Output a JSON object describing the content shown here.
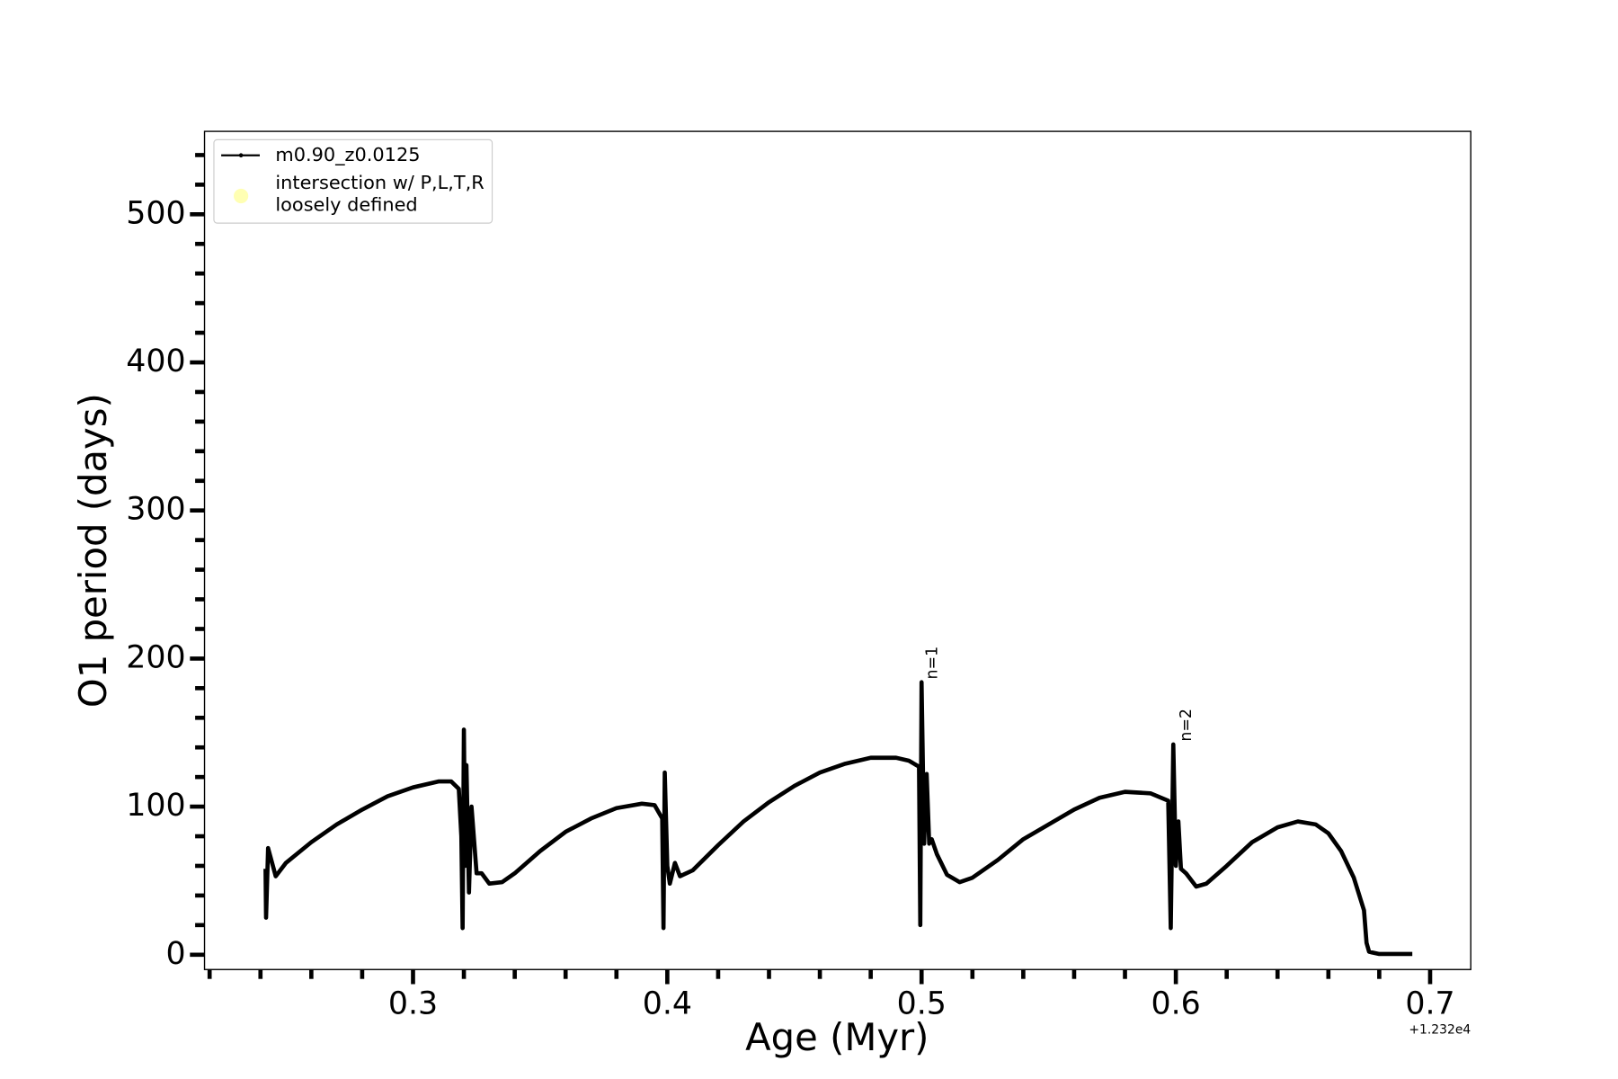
{
  "chart_data": {
    "type": "line",
    "xlabel": "Age (Myr)",
    "ylabel": "O1 period (days)",
    "x_offset_label": "+1.232e4",
    "x": [
      0.242,
      0.2422,
      0.243,
      0.246,
      0.25,
      0.26,
      0.27,
      0.28,
      0.29,
      0.3,
      0.31,
      0.315,
      0.318,
      0.319,
      0.3195,
      0.32,
      0.3205,
      0.321,
      0.322,
      0.323,
      0.325,
      0.327,
      0.33,
      0.335,
      0.34,
      0.35,
      0.36,
      0.37,
      0.38,
      0.39,
      0.395,
      0.398,
      0.3985,
      0.399,
      0.4,
      0.401,
      0.403,
      0.405,
      0.41,
      0.42,
      0.43,
      0.44,
      0.45,
      0.46,
      0.47,
      0.48,
      0.49,
      0.495,
      0.499,
      0.4995,
      0.5,
      0.501,
      0.502,
      0.503,
      0.504,
      0.506,
      0.51,
      0.515,
      0.52,
      0.53,
      0.54,
      0.55,
      0.56,
      0.57,
      0.58,
      0.59,
      0.597,
      0.598,
      0.599,
      0.6,
      0.601,
      0.602,
      0.604,
      0.608,
      0.612,
      0.62,
      0.63,
      0.64,
      0.648,
      0.655,
      0.66,
      0.665,
      0.67,
      0.674,
      0.675,
      0.676,
      0.68,
      0.693
    ],
    "series": [
      {
        "name": "m0.90_z0.0125",
        "color": "#000000",
        "values": [
          58,
          25,
          72,
          53,
          62,
          76,
          88,
          98,
          107,
          113,
          117,
          117,
          112,
          80,
          18,
          152,
          60,
          128,
          42,
          100,
          55,
          55,
          48,
          49,
          55,
          70,
          83,
          92,
          99,
          102,
          101,
          92,
          18,
          123,
          60,
          48,
          62,
          53,
          57,
          74,
          90,
          103,
          114,
          123,
          129,
          133,
          133,
          131,
          127,
          20,
          184,
          75,
          122,
          75,
          78,
          68,
          54,
          49,
          52,
          64,
          78,
          88,
          98,
          106,
          110,
          109,
          104,
          18,
          142,
          60,
          90,
          58,
          55,
          46,
          48,
          60,
          76,
          86,
          90,
          88,
          82,
          70,
          52,
          30,
          8,
          2,
          0.5,
          0.5
        ]
      }
    ],
    "marker_legend": {
      "lines": [
        "intersection w/ P,L,T,R",
        "loosely defined"
      ],
      "color": "#ffffb3"
    },
    "annotations": [
      {
        "text": "n=1",
        "x": 0.501,
        "y": 186
      },
      {
        "text": "n=2",
        "x": 0.601,
        "y": 144
      }
    ],
    "xlim": [
      0.218,
      0.716
    ],
    "ylim": [
      -10,
      556
    ],
    "xticks": [
      0.3,
      0.4,
      0.5,
      0.6,
      0.7
    ],
    "yticks": [
      0,
      100,
      200,
      300,
      400,
      500
    ],
    "xminorticks": [
      0.22,
      0.24,
      0.26,
      0.28,
      0.32,
      0.34,
      0.36,
      0.38,
      0.42,
      0.44,
      0.46,
      0.48,
      0.52,
      0.54,
      0.56,
      0.58,
      0.62,
      0.64,
      0.66,
      0.68
    ],
    "yminorticks": [
      20,
      40,
      60,
      80,
      120,
      140,
      160,
      180,
      220,
      240,
      260,
      280,
      320,
      340,
      360,
      380,
      420,
      440,
      460,
      480,
      520,
      540
    ],
    "legend_position": "upper left",
    "grid": false
  }
}
